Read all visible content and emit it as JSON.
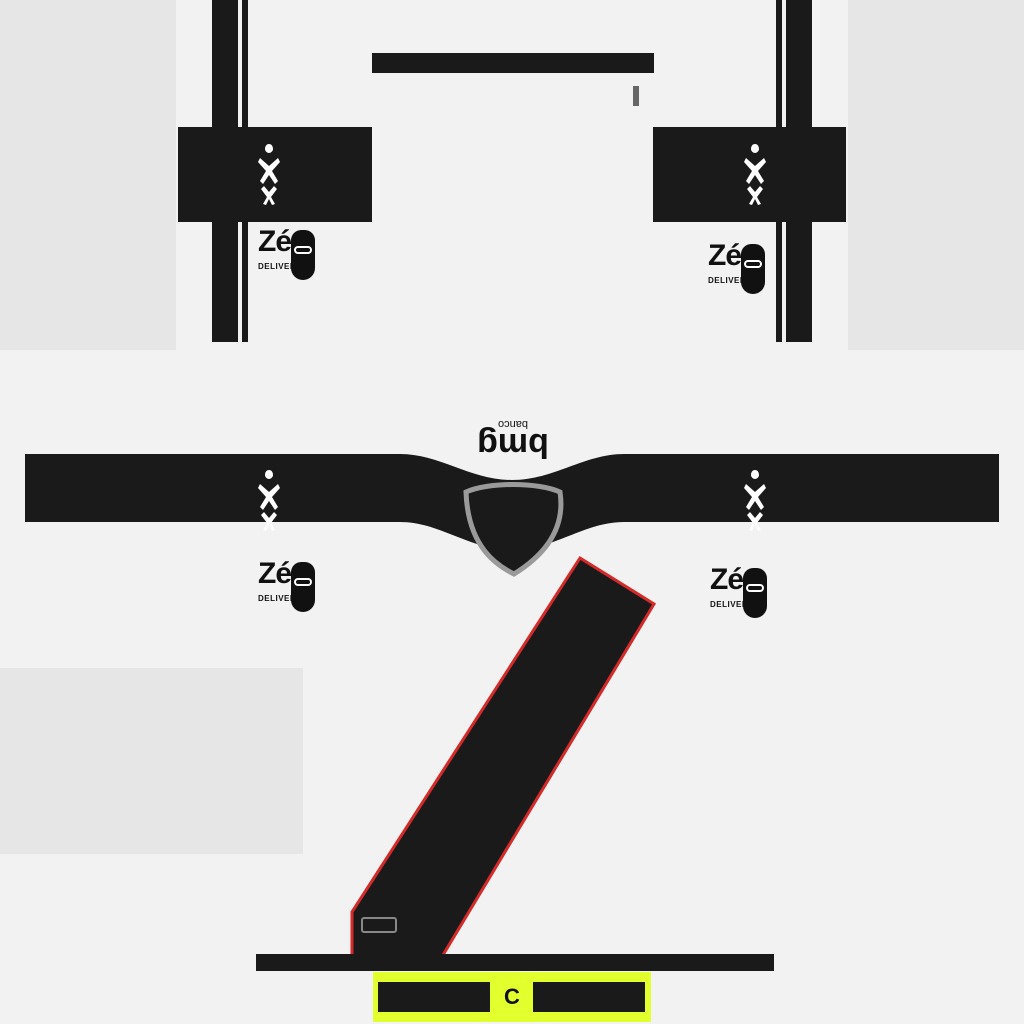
{
  "main_sponsor": {
    "name": "bmg",
    "sub": "banco"
  },
  "secondary_sponsor": {
    "name": "Zé",
    "sub": "DELIVERY"
  },
  "captain_band": {
    "letter": "C",
    "color": "#e2ff2e"
  },
  "colors": {
    "shirt": "#f2f2f2",
    "sash": "#1a1a1a",
    "sash_trim": "#d42a2a",
    "panel": "#e6e6e6"
  },
  "icons": [
    "kappa-logo-icon",
    "face-logo-icon",
    "crest-icon"
  ]
}
